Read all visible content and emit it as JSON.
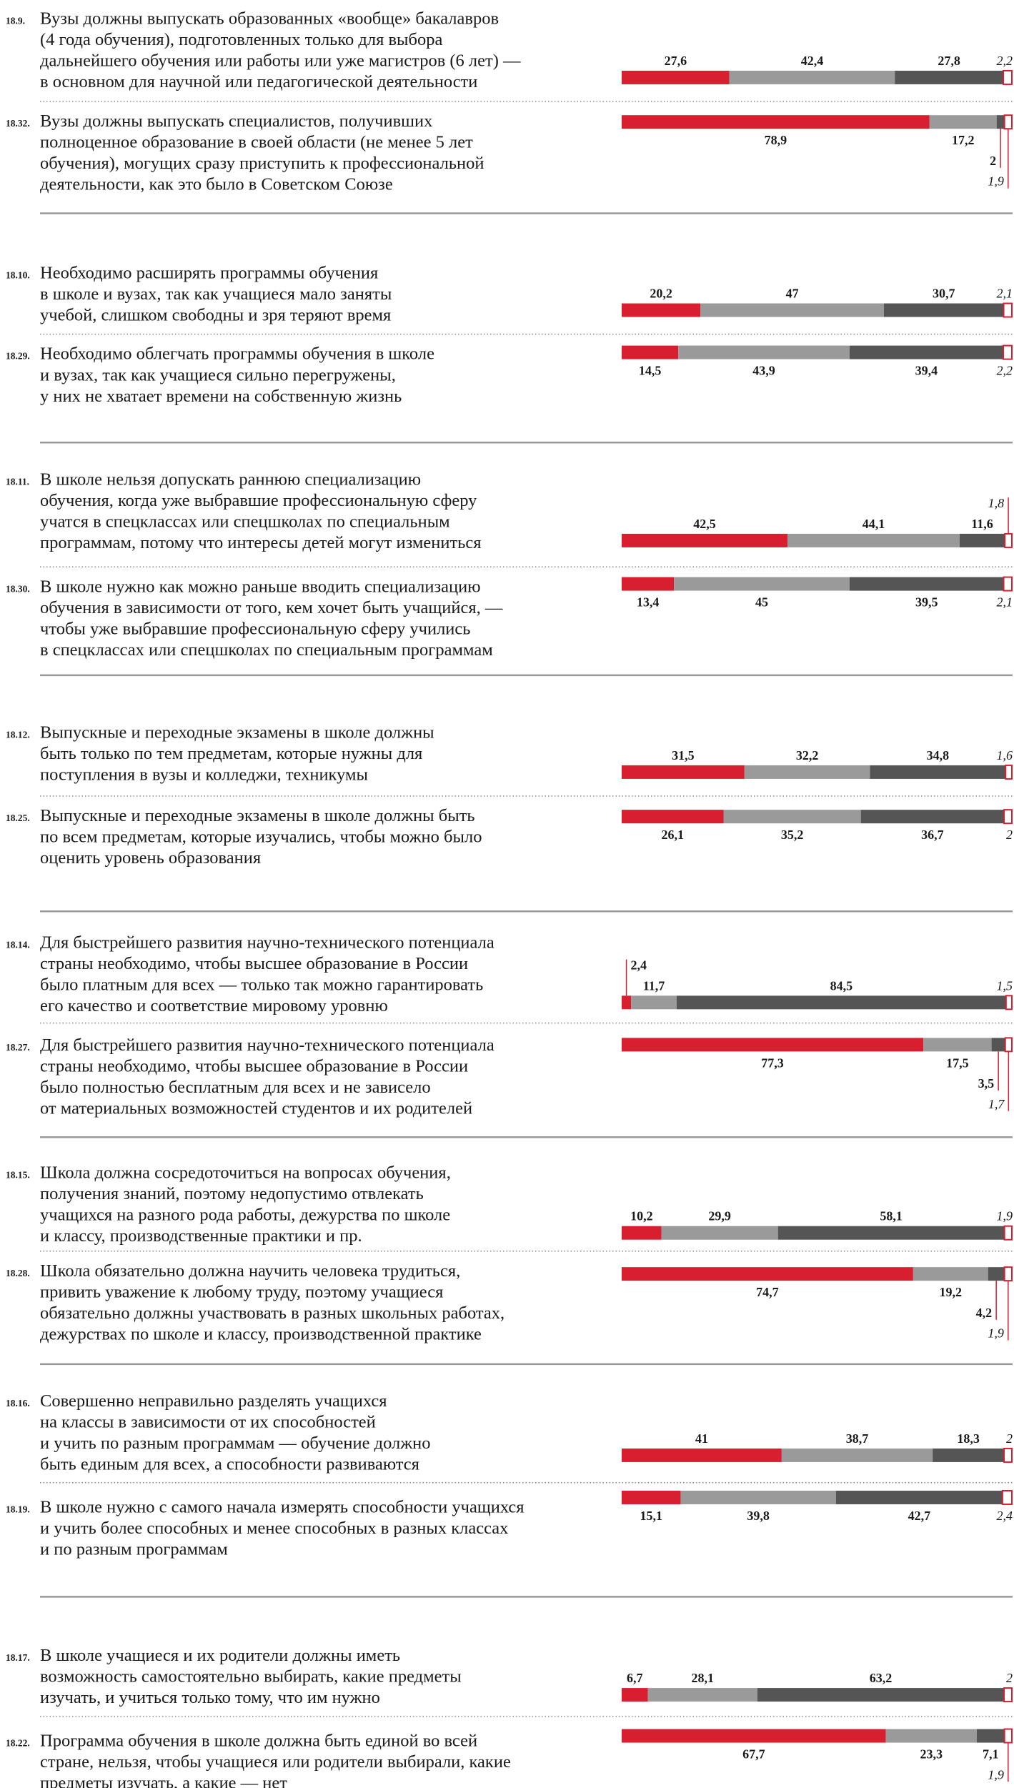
{
  "colors": [
    "#d71f30",
    "#9a9a9a",
    "#555555",
    "#ffffff"
  ],
  "items": [
    {
      "code": "18.9.",
      "text": [
        "Вузы должны выпускать образованных «вообще» бакалавров",
        "(4 года обучения), подготовленных только для выбора",
        "дальнейшего обучения или работы или уже магистров (6 лет) —",
        "в основном для научной или педагогической деятельности"
      ],
      "values": [
        27.6,
        42.4,
        27.8,
        2.2
      ],
      "value_labels": [
        "27,6",
        "42,4",
        "27,8",
        "2,2"
      ]
    },
    {
      "code": "18.32.",
      "text": [
        "Вузы должны выпускать специалистов, получивших",
        "полноценное образование в своей области (не менее 5 лет",
        "обучения), могущих сразу приступить к профессиональной",
        "деятельности, как это было в Советском Союзе"
      ],
      "values": [
        78.9,
        17.2,
        2,
        1.9
      ],
      "value_labels": [
        "78,9",
        "17,2",
        "2",
        "1,9"
      ]
    },
    {
      "code": "18.10.",
      "text": [
        "Необходимо расширять программы обучения",
        "в школе и вузах, так как учащиеся мало заняты",
        "учебой, слишком свободны и зря теряют время"
      ],
      "values": [
        20.2,
        47,
        30.7,
        2.1
      ],
      "value_labels": [
        "20,2",
        "47",
        "30,7",
        "2,1"
      ]
    },
    {
      "code": "18.29.",
      "text": [
        "Необходимо облегчать программы обучения в школе",
        "и вузах, так как учащиеся сильно перегружены,",
        "у них не хватает времени на собственную жизнь"
      ],
      "values": [
        14.5,
        43.9,
        39.4,
        2.2
      ],
      "value_labels": [
        "14,5",
        "43,9",
        "39,4",
        "2,2"
      ]
    },
    {
      "code": "18.11.",
      "text": [
        "В школе нельзя допускать раннюю специализацию",
        "обучения, когда уже выбравшие профессиональную сферу",
        "учатся в спецклассах или спецшколах по специальным",
        "программам, потому что интересы детей могут измениться"
      ],
      "values": [
        42.5,
        44.1,
        11.6,
        1.8
      ],
      "value_labels": [
        "42,5",
        "44,1",
        "11,6",
        "1,8"
      ]
    },
    {
      "code": "18.30.",
      "text": [
        "В школе нужно как можно раньше вводить специализацию",
        "обучения в зависимости от того, кем хочет быть учащийся, —",
        "чтобы уже выбравшие профессиональную сферу учились",
        "в спецклассах или спецшколах по специальным программам"
      ],
      "values": [
        13.4,
        45,
        39.5,
        2.1
      ],
      "value_labels": [
        "13,4",
        "45",
        "39,5",
        "2,1"
      ]
    },
    {
      "code": "18.12.",
      "text": [
        "Выпускные и переходные экзамены в школе должны",
        "быть только по тем предметам, которые нужны для",
        "поступления в вузы и колледжи, техникумы"
      ],
      "values": [
        31.5,
        32.2,
        34.8,
        1.6
      ],
      "value_labels": [
        "31,5",
        "32,2",
        "34,8",
        "1,6"
      ]
    },
    {
      "code": "18.25.",
      "text": [
        "Выпускные и переходные экзамены в школе должны быть",
        "по всем предметам, которые изучались, чтобы можно было",
        "оценить уровень образования"
      ],
      "values": [
        26.1,
        35.2,
        36.7,
        2
      ],
      "value_labels": [
        "26,1",
        "35,2",
        "36,7",
        "2"
      ]
    },
    {
      "code": "18.14.",
      "text": [
        "Для быстрейшего развития научно-технического потенциала",
        "страны необходимо, чтобы высшее образование в России",
        "было платным для всех — только так можно гарантировать",
        "его качество и соответствие мировому уровню"
      ],
      "values": [
        2.4,
        11.7,
        84.5,
        1.5
      ],
      "value_labels": [
        "2,4",
        "11,7",
        "84,5",
        "1,5"
      ]
    },
    {
      "code": "18.27.",
      "text": [
        "Для быстрейшего развития научно-технического потенциала",
        "страны необходимо, чтобы высшее образование в России",
        "было полностью бесплатным для всех и не зависело",
        "от материальных возможностей студентов и их родителей"
      ],
      "values": [
        77.3,
        17.5,
        3.5,
        1.7
      ],
      "value_labels": [
        "77,3",
        "17,5",
        "3,5",
        "1,7"
      ]
    },
    {
      "code": "18.15.",
      "text": [
        "Школа должна сосредоточиться на вопросах обучения,",
        "получения знаний, поэтому недопустимо отвлекать",
        "учащихся на разного рода работы, дежурства по школе",
        "и классу, производственные практики и пр."
      ],
      "values": [
        10.2,
        29.9,
        58.1,
        1.9
      ],
      "value_labels": [
        "10,2",
        "29,9",
        "58,1",
        "1,9"
      ]
    },
    {
      "code": "18.28.",
      "text": [
        "Школа обязательно должна научить человека трудиться,",
        "привить уважение к любому труду, поэтому учащиеся",
        "обязательно должны участвовать в разных школьных работах,",
        "дежурствах по школе и классу, производственной практике"
      ],
      "values": [
        74.7,
        19.2,
        4.2,
        1.9
      ],
      "value_labels": [
        "74,7",
        "19,2",
        "4,2",
        "1,9"
      ]
    },
    {
      "code": "18.16.",
      "text": [
        "Совершенно неправильно разделять учащихся",
        "на классы в зависимости от их способностей",
        "и учить по разным программам — обучение должно",
        "быть единым для всех, а способности развиваются"
      ],
      "values": [
        41,
        38.7,
        18.3,
        2
      ],
      "value_labels": [
        "41",
        "38,7",
        "18,3",
        "2"
      ]
    },
    {
      "code": "18.19.",
      "text": [
        "В школе нужно с самого начала измерять способности учащихся",
        "и учить более способных и менее способных в разных классах",
        "и по разным программам"
      ],
      "values": [
        15.1,
        39.8,
        42.7,
        2.4
      ],
      "value_labels": [
        "15,1",
        "39,8",
        "42,7",
        "2,4"
      ]
    },
    {
      "code": "18.17.",
      "text": [
        "В школе учащиеся и их родители должны иметь",
        "возможность самостоятельно выбирать, какие предметы",
        "изучать, и учиться только тому, что им нужно"
      ],
      "values": [
        6.7,
        28.1,
        63.2,
        2
      ],
      "value_labels": [
        "6,7",
        "28,1",
        "63,2",
        "2"
      ]
    },
    {
      "code": "18.22.",
      "text": [
        "Программа обучения в школе должна быть единой во всей",
        "стране, нельзя, чтобы учащиеся или родители выбирали, какие",
        "предметы изучать, а какие — нет"
      ],
      "values": [
        67.7,
        23.3,
        7.1,
        1.9
      ],
      "value_labels": [
        "67,7",
        "23,3",
        "7,1",
        "1,9"
      ]
    }
  ]
}
